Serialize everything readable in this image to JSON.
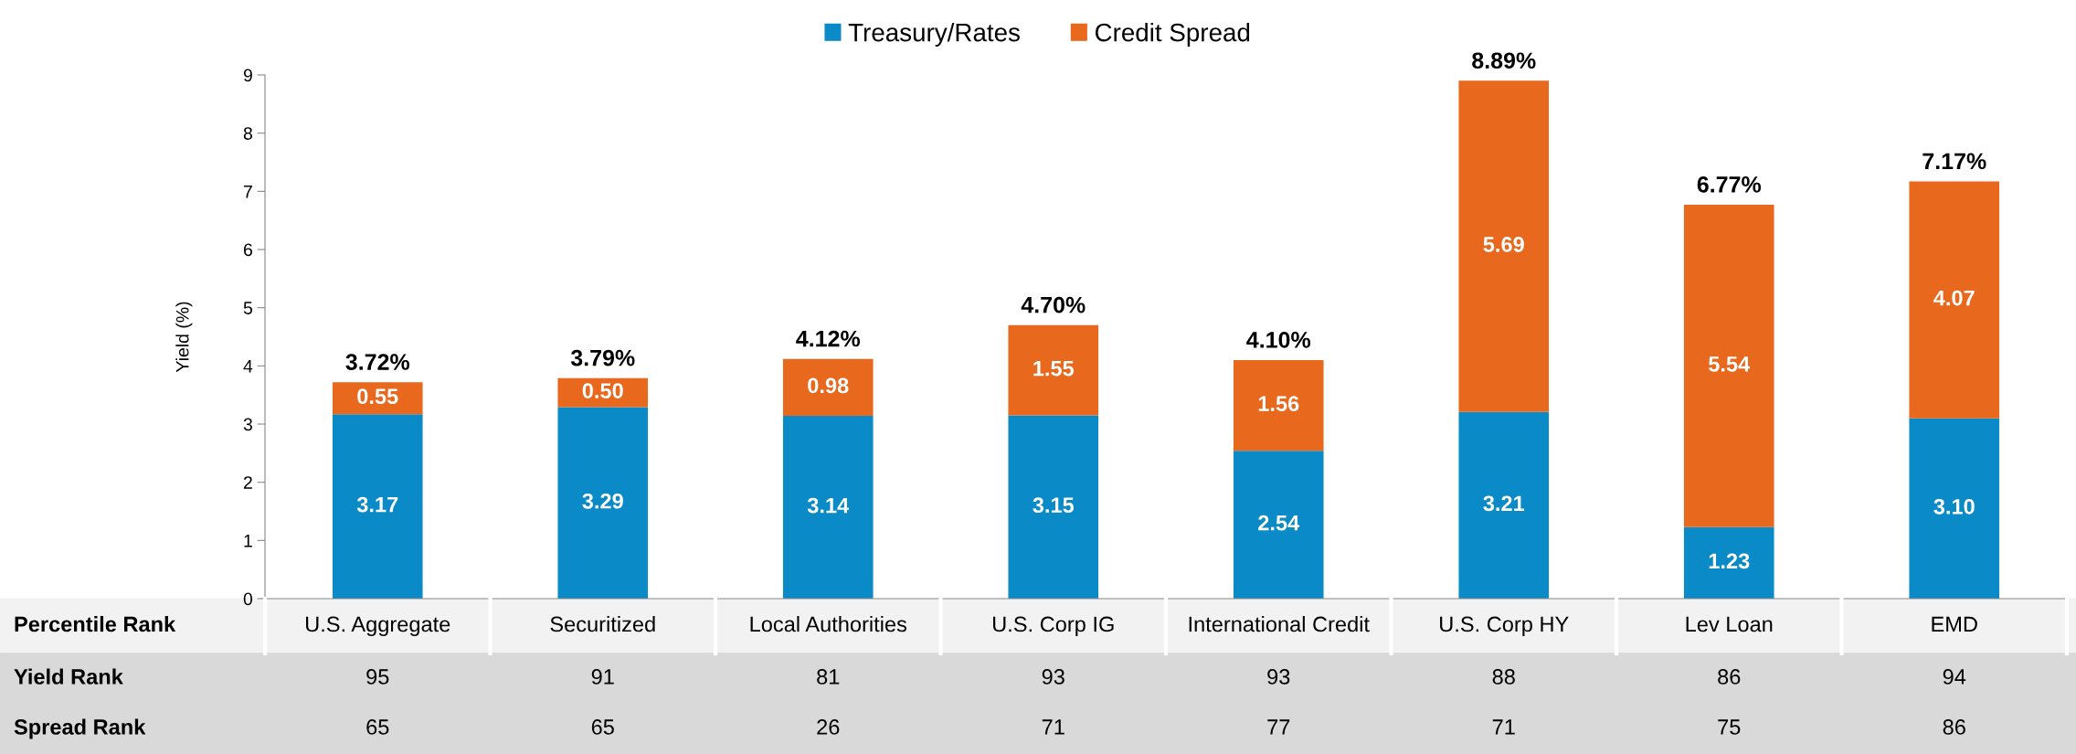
{
  "chart_data": {
    "type": "bar",
    "stacked": true,
    "ylabel": "Yield (%)",
    "categories": [
      "U.S. Aggregate",
      "Securitized",
      "Local Authorities",
      "U.S. Corp IG",
      "International Credit",
      "U.S. Corp HY",
      "Lev Loan",
      "EMD"
    ],
    "series": [
      {
        "name": "Treasury/Rates",
        "color": "#0a8ac6",
        "values": [
          3.17,
          3.29,
          3.14,
          3.15,
          2.54,
          3.21,
          1.23,
          3.1
        ],
        "value_labels": [
          "3.17",
          "3.29",
          "3.14",
          "3.15",
          "2.54",
          "3.21",
          "1.23",
          "3.10"
        ]
      },
      {
        "name": "Credit Spread",
        "color": "#e8681e",
        "values": [
          0.55,
          0.5,
          0.98,
          1.55,
          1.56,
          5.69,
          5.54,
          4.07
        ],
        "value_labels": [
          "0.55",
          "0.50",
          "0.98",
          "1.55",
          "1.56",
          "5.69",
          "5.54",
          "4.07"
        ]
      }
    ],
    "totals": [
      "3.72%",
      "3.79%",
      "4.12%",
      "4.70%",
      "4.10%",
      "8.89%",
      "6.77%",
      "7.17%"
    ],
    "ylim": [
      0,
      9
    ],
    "yticks": [
      0,
      1,
      2,
      3,
      4,
      5,
      6,
      7,
      8,
      9
    ],
    "grid": false,
    "legend": "top",
    "annotations": [
      "Percentile Rank",
      "Yield Rank",
      "95",
      "91",
      "81",
      "93",
      "93",
      "88",
      "86",
      "94",
      "Spread Rank",
      "65",
      "65",
      "26",
      "71",
      "77",
      "71",
      "75",
      "86"
    ]
  }
}
